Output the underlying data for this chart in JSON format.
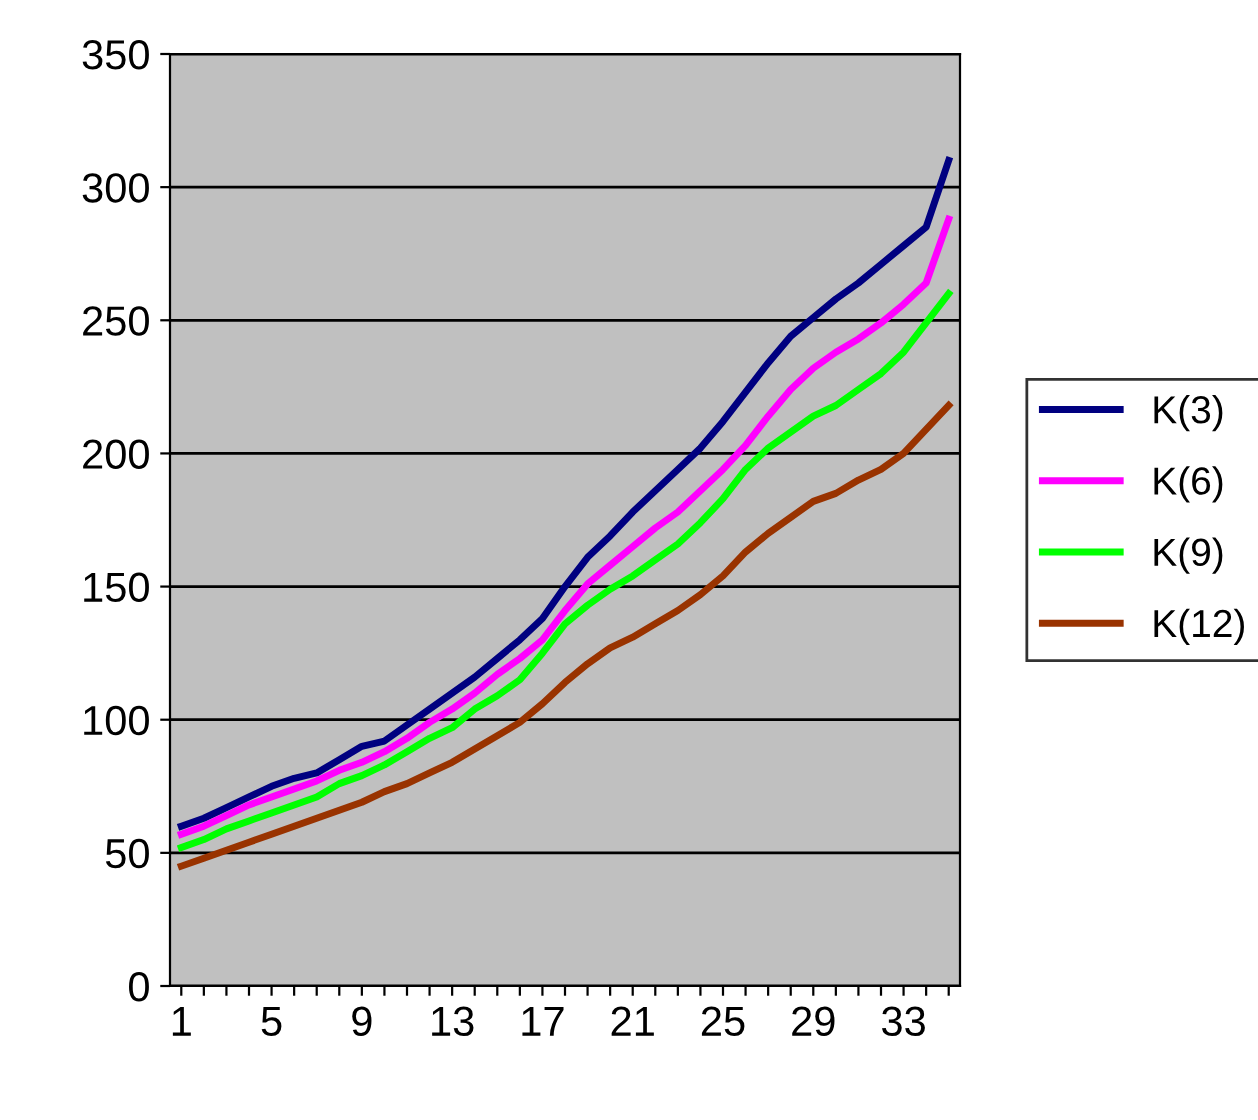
{
  "chart_data": {
    "type": "line",
    "categories": [
      "1",
      null,
      null,
      null,
      "5",
      null,
      null,
      null,
      "9",
      null,
      null,
      null,
      "13",
      null,
      null,
      null,
      "17",
      null,
      null,
      null,
      "21",
      null,
      null,
      null,
      "25",
      null,
      null,
      null,
      "29",
      null,
      null,
      null,
      "33",
      null,
      null
    ],
    "series": [
      {
        "name": "K(3)",
        "color": "#000080",
        "values": [
          60,
          63,
          67,
          71,
          75,
          78,
          80,
          85,
          90,
          92,
          98,
          104,
          110,
          116,
          123,
          130,
          138,
          150,
          161,
          169,
          178,
          186,
          194,
          202,
          212,
          223,
          234,
          244,
          251,
          258,
          264,
          271,
          278,
          285,
          310
        ]
      },
      {
        "name": "K(6)",
        "color": "#ff00ff",
        "values": [
          57,
          60,
          64,
          68,
          71,
          74,
          77,
          81,
          84,
          88,
          93,
          99,
          104,
          110,
          117,
          123,
          130,
          141,
          151,
          158,
          165,
          172,
          178,
          186,
          194,
          203,
          214,
          224,
          232,
          238,
          243,
          249,
          256,
          264,
          288
        ]
      },
      {
        "name": "K(9)",
        "color": "#00ff00",
        "values": [
          52,
          55,
          59,
          62,
          65,
          68,
          71,
          76,
          79,
          83,
          88,
          93,
          97,
          104,
          109,
          115,
          125,
          136,
          143,
          149,
          154,
          160,
          166,
          174,
          183,
          194,
          202,
          208,
          214,
          218,
          224,
          230,
          238,
          249,
          260
        ]
      },
      {
        "name": "K(12)",
        "color": "#993300",
        "values": [
          45,
          48,
          51,
          54,
          57,
          60,
          63,
          66,
          69,
          73,
          76,
          80,
          84,
          89,
          94,
          99,
          106,
          114,
          121,
          127,
          131,
          136,
          141,
          147,
          154,
          163,
          170,
          176,
          182,
          185,
          190,
          194,
          200,
          209,
          218
        ]
      }
    ],
    "ylim": [
      0,
      350
    ],
    "yticks": [
      0,
      50,
      100,
      150,
      200,
      250,
      300,
      350
    ],
    "grid": "y",
    "legend": "right",
    "marker": "none",
    "line_style": "solid"
  }
}
